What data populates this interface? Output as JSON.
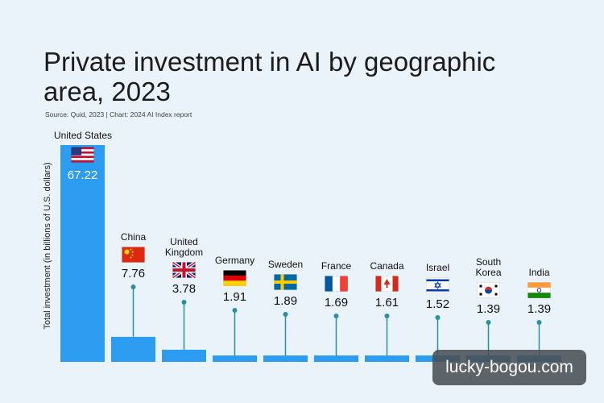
{
  "chart_data": {
    "type": "bar",
    "title": "Private investment in AI by geographic area, 2023",
    "source": "Source: Quid, 2023 | Chart: 2024 AI Index report",
    "ylabel": "Total investment (in billions of U.S. dollars)",
    "xlabel": "",
    "categories": [
      {
        "label": "United States",
        "lines": [
          "United States"
        ],
        "value": 67.22,
        "value_label": "67.22",
        "flag": "us-flag-icon"
      },
      {
        "label": "China",
        "lines": [
          "China"
        ],
        "value": 7.76,
        "value_label": "7.76",
        "flag": "china-flag-icon"
      },
      {
        "label": "United Kingdom",
        "lines": [
          "United",
          "Kingdom"
        ],
        "value": 3.78,
        "value_label": "3.78",
        "flag": "uk-flag-icon"
      },
      {
        "label": "Germany",
        "lines": [
          "Germany"
        ],
        "value": 1.91,
        "value_label": "1.91",
        "flag": "germany-flag-icon"
      },
      {
        "label": "Sweden",
        "lines": [
          "Sweden"
        ],
        "value": 1.89,
        "value_label": "1.89",
        "flag": "sweden-flag-icon"
      },
      {
        "label": "France",
        "lines": [
          "France"
        ],
        "value": 1.69,
        "value_label": "1.69",
        "flag": "france-flag-icon"
      },
      {
        "label": "Canada",
        "lines": [
          "Canada"
        ],
        "value": 1.61,
        "value_label": "1.61",
        "flag": "canada-flag-icon"
      },
      {
        "label": "Israel",
        "lines": [
          "Israel"
        ],
        "value": 1.52,
        "value_label": "1.52",
        "flag": "israel-flag-icon"
      },
      {
        "label": "South Korea",
        "lines": [
          "South",
          "Korea"
        ],
        "value": 1.39,
        "value_label": "1.39",
        "flag": "south-korea-flag-icon"
      },
      {
        "label": "India",
        "lines": [
          "India"
        ],
        "value": 1.39,
        "value_label": "1.39",
        "flag": "india-flag-icon"
      }
    ],
    "bar_color": "#2b9cf0",
    "stem_color": "#2a8fa0",
    "grid": false,
    "legend": "none"
  },
  "watermark": "lucky-bogou.com"
}
